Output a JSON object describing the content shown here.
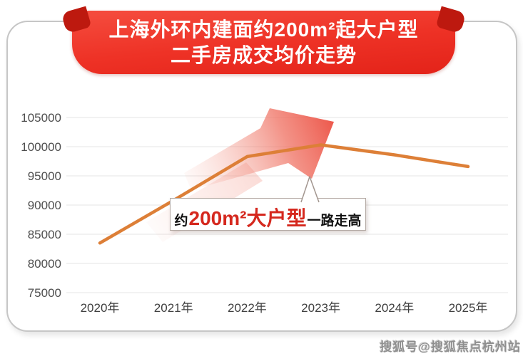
{
  "header": {
    "title_line1": "上海外环内建面约200m²起大户型",
    "title_line2": "二手房成交均价走势",
    "banner_color": "#ee3226",
    "banner_fold_color": "#bd190f"
  },
  "chart_data": {
    "type": "line",
    "title": "上海外环内建面约200m²起大户型二手房成交均价走势",
    "categories": [
      "2020年",
      "2021年",
      "2022年",
      "2023年",
      "2024年",
      "2025年"
    ],
    "series": [
      {
        "name": "成交均价",
        "values": [
          83500,
          90800,
          98300,
          100300,
          98600,
          96600
        ]
      }
    ],
    "ylim": [
      75000,
      105000
    ],
    "yticks": [
      105000,
      100000,
      95000,
      90000,
      85000,
      80000,
      75000
    ],
    "xlabel": "",
    "ylabel": "",
    "grid": "horizontal",
    "legend_position": "none",
    "line_color": "#dd7f37"
  },
  "annotation": {
    "callout_prefix": "约",
    "callout_highlight": "200m²大户型",
    "callout_suffix": "一路走高",
    "highlight_color": "#d5281e",
    "arrow_color": "#ec5245"
  },
  "watermark": {
    "text": "搜狐号@搜狐焦点杭州站"
  }
}
